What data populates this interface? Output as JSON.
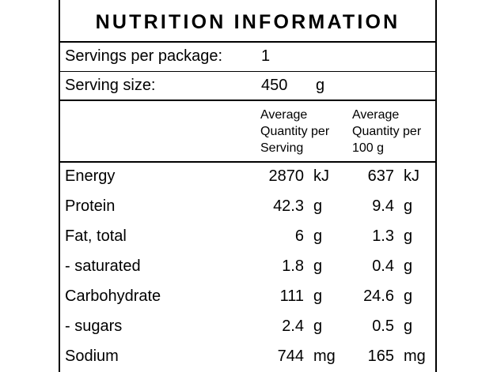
{
  "title": "NUTRITION INFORMATION",
  "servings": {
    "label": "Servings per package:",
    "value": "1"
  },
  "serving_size": {
    "label": "Serving size:",
    "value": "450",
    "unit": "g"
  },
  "column_headers": {
    "per_serving": [
      "Average",
      "Quantity per",
      "Serving"
    ],
    "per_100g": [
      "Average",
      "Quantity per",
      "100 g"
    ]
  },
  "rows": [
    {
      "name": "Energy",
      "serving": "2870",
      "serving_unit": "kJ",
      "per100": "637",
      "per100_unit": "kJ"
    },
    {
      "name": "Protein",
      "serving": "42.3",
      "serving_unit": "g",
      "per100": "9.4",
      "per100_unit": "g"
    },
    {
      "name": "Fat, total",
      "serving": "6",
      "serving_unit": "g",
      "per100": "1.3",
      "per100_unit": "g"
    },
    {
      "name": "- saturated",
      "serving": "1.8",
      "serving_unit": "g",
      "per100": "0.4",
      "per100_unit": "g"
    },
    {
      "name": "Carbohydrate",
      "serving": "111",
      "serving_unit": "g",
      "per100": "24.6",
      "per100_unit": "g"
    },
    {
      "name": "- sugars",
      "serving": "2.4",
      "serving_unit": "g",
      "per100": "0.5",
      "per100_unit": "g"
    },
    {
      "name": "Sodium",
      "serving": "744",
      "serving_unit": "mg",
      "per100": "165",
      "per100_unit": "mg"
    }
  ]
}
